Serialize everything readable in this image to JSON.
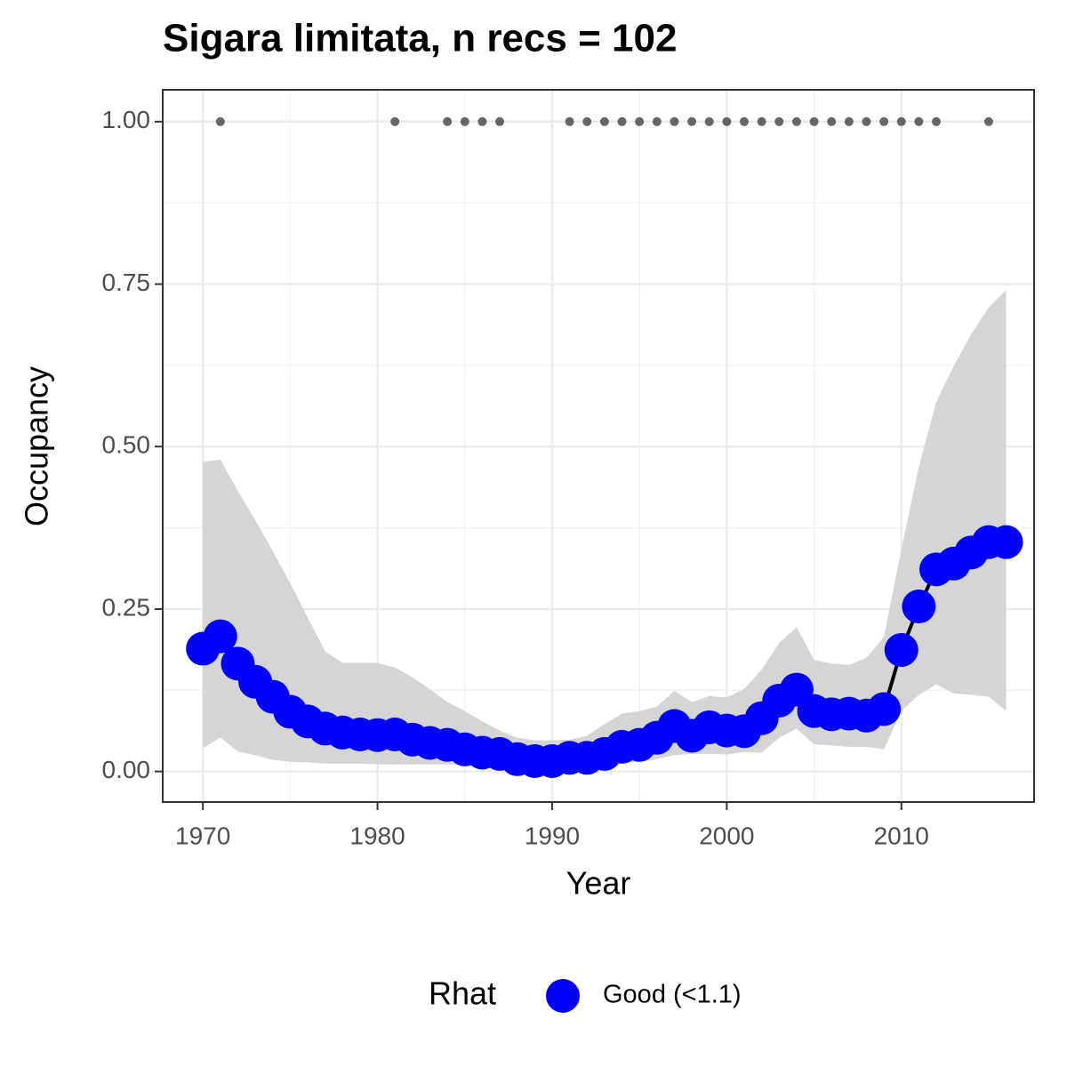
{
  "chart_data": {
    "type": "line",
    "title": "Sigara limitata, n recs = 102",
    "xlabel": "Year",
    "ylabel": "Occupancy",
    "x": [
      1970,
      1971,
      1972,
      1973,
      1974,
      1975,
      1976,
      1977,
      1978,
      1979,
      1980,
      1981,
      1982,
      1983,
      1984,
      1985,
      1986,
      1987,
      1988,
      1989,
      1990,
      1991,
      1992,
      1993,
      1994,
      1995,
      1996,
      1997,
      1998,
      1999,
      2000,
      2001,
      2002,
      2003,
      2004,
      2005,
      2006,
      2007,
      2008,
      2009,
      2010,
      2011,
      2012,
      2013,
      2014,
      2015,
      2016
    ],
    "series": [
      {
        "name": "Good (<1.1)",
        "color": "#0000ff",
        "line_color": "#000000",
        "values": [
          0.189,
          0.208,
          0.166,
          0.138,
          0.115,
          0.092,
          0.077,
          0.066,
          0.06,
          0.057,
          0.056,
          0.057,
          0.049,
          0.044,
          0.041,
          0.034,
          0.029,
          0.027,
          0.019,
          0.016,
          0.016,
          0.021,
          0.021,
          0.027,
          0.038,
          0.041,
          0.052,
          0.07,
          0.055,
          0.068,
          0.063,
          0.062,
          0.082,
          0.109,
          0.126,
          0.093,
          0.088,
          0.089,
          0.086,
          0.096,
          0.187,
          0.254,
          0.311,
          0.32,
          0.337,
          0.353,
          0.353
        ]
      }
    ],
    "band": {
      "color": "#d5d5d5",
      "upper": [
        0.476,
        0.48,
        0.432,
        0.387,
        0.339,
        0.29,
        0.237,
        0.185,
        0.167,
        0.167,
        0.167,
        0.16,
        0.145,
        0.127,
        0.107,
        0.093,
        0.077,
        0.063,
        0.052,
        0.048,
        0.048,
        0.049,
        0.055,
        0.073,
        0.089,
        0.093,
        0.1,
        0.124,
        0.107,
        0.116,
        0.114,
        0.127,
        0.157,
        0.198,
        0.222,
        0.172,
        0.166,
        0.164,
        0.175,
        0.207,
        0.342,
        0.469,
        0.569,
        0.624,
        0.673,
        0.714,
        0.741
      ],
      "lower": [
        0.036,
        0.052,
        0.031,
        0.025,
        0.018,
        0.015,
        0.014,
        0.012,
        0.012,
        0.012,
        0.011,
        0.011,
        0.011,
        0.011,
        0.011,
        0.01,
        0.01,
        0.009,
        0.008,
        0.007,
        0.007,
        0.008,
        0.01,
        0.011,
        0.014,
        0.015,
        0.019,
        0.025,
        0.027,
        0.027,
        0.026,
        0.03,
        0.029,
        0.052,
        0.066,
        0.042,
        0.04,
        0.038,
        0.038,
        0.034,
        0.093,
        0.118,
        0.134,
        0.12,
        0.118,
        0.115,
        0.093
      ]
    },
    "records": {
      "color": "#666666",
      "x": [
        1971,
        1981,
        1984,
        1985,
        1986,
        1987,
        1991,
        1992,
        1993,
        1994,
        1995,
        1996,
        1997,
        1998,
        1999,
        2000,
        2001,
        2002,
        2003,
        2004,
        2005,
        2006,
        2007,
        2008,
        2009,
        2010,
        2011,
        2012,
        2015
      ],
      "values": [
        1,
        1,
        1,
        1,
        1,
        1,
        1,
        1,
        1,
        1,
        1,
        1,
        1,
        1,
        1,
        1,
        1,
        1,
        1,
        1,
        1,
        1,
        1,
        1,
        1,
        1,
        1,
        1,
        1
      ]
    },
    "xlim": [
      1967.7,
      2017.6
    ],
    "xticks": [
      1970,
      1980,
      1990,
      2000,
      2010
    ],
    "ylim": [
      -0.047,
      1.049
    ],
    "yticks": [
      {
        "value": 0,
        "label": "0.00"
      },
      {
        "value": 0.25,
        "label": "0.25"
      },
      {
        "value": 0.5,
        "label": "0.50"
      },
      {
        "value": 0.75,
        "label": "0.75"
      },
      {
        "value": 1,
        "label": "1.00"
      }
    ],
    "grid": true,
    "legend": {
      "title": "Rhat",
      "position": "bottom"
    }
  }
}
